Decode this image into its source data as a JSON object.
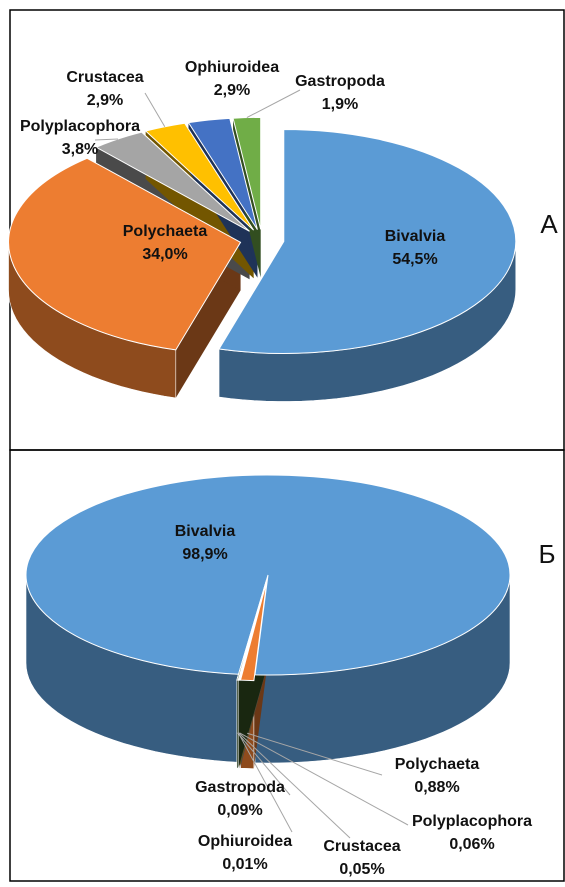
{
  "chart_data": [
    {
      "type": "pie3d",
      "title": "А",
      "categories": [
        "Bivalvia",
        "Polychaeta",
        "Polyplacophora",
        "Crustacea",
        "Ophiuroidea",
        "Gastropoda"
      ],
      "values": [
        54.5,
        34.0,
        3.8,
        2.9,
        2.9,
        1.9
      ],
      "value_labels": [
        "54,5%",
        "34,0%",
        "3,8%",
        "2,9%",
        "2,9%",
        "1,9%"
      ],
      "colors": [
        "#5b9bd5",
        "#ed7d31",
        "#a5a5a5",
        "#ffc000",
        "#4472c4",
        "#70ad47"
      ]
    },
    {
      "type": "pie3d",
      "title": "Б",
      "categories": [
        "Bivalvia",
        "Polychaeta",
        "Polyplacophora",
        "Crustacea",
        "Ophiuroidea",
        "Gastropoda"
      ],
      "values": [
        98.9,
        0.88,
        0.06,
        0.05,
        0.01,
        0.09
      ],
      "value_labels": [
        "98,9%",
        "0,88%",
        "0,06%",
        "0,05%",
        "0,01%",
        "0,09%"
      ],
      "colors": [
        "#5b9bd5",
        "#ed7d31",
        "#a5a5a5",
        "#ffc000",
        "#4472c4",
        "#375623"
      ]
    }
  ]
}
